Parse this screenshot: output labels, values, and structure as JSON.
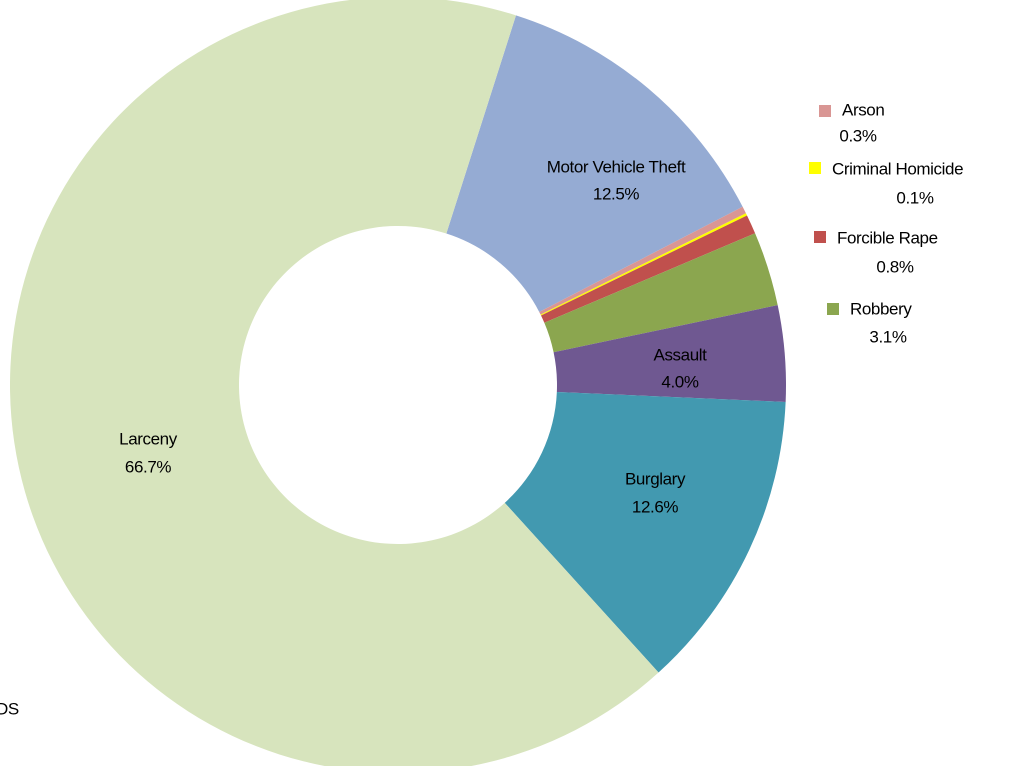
{
  "chart_data": {
    "type": "donut",
    "categories": [
      "Motor Vehicle Theft",
      "Arson",
      "Criminal Homicide",
      "Forcible Rape",
      "Robbery",
      "Assault",
      "Burglary",
      "Larceny"
    ],
    "values": [
      12.5,
      0.3,
      0.1,
      0.8,
      3.1,
      4.0,
      12.6,
      66.7
    ],
    "value_labels": [
      "12.5%",
      "0.3%",
      "0.1%",
      "0.8%",
      "3.1%",
      "4.0%",
      "12.6%",
      "66.7%"
    ],
    "colors": [
      "#95abd3",
      "#d99694",
      "#ffff00",
      "#c0504d",
      "#8ba64f",
      "#6f5891",
      "#4299b0",
      "#d7e4bd"
    ],
    "annotation": "DS"
  }
}
